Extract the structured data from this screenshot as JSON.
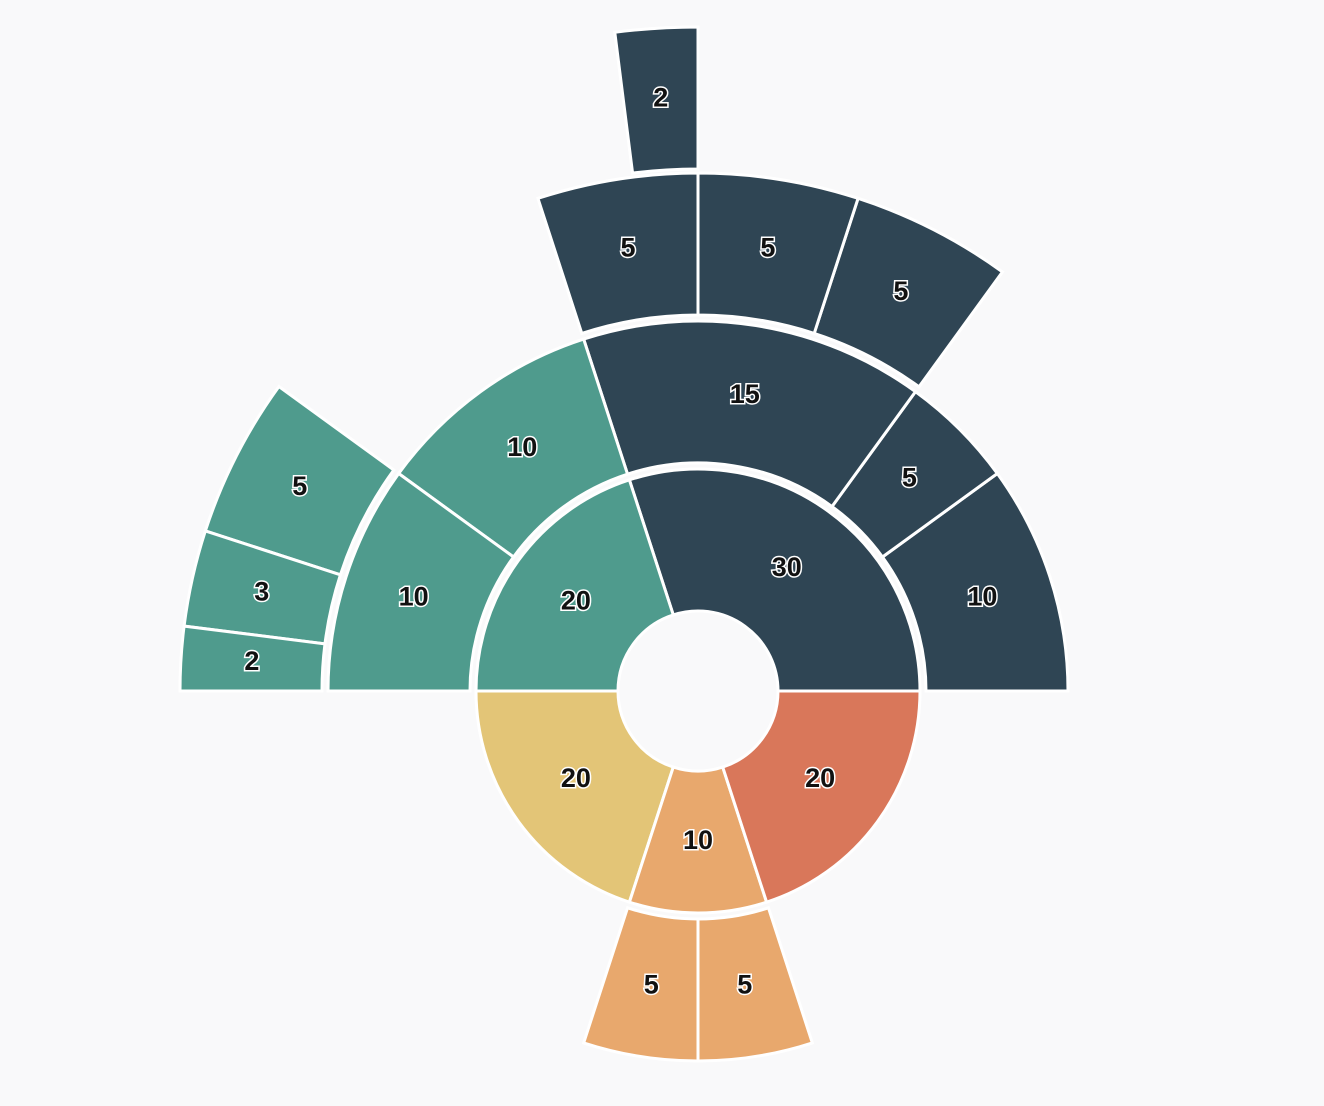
{
  "chart_data": {
    "type": "sunburst",
    "data": [
      {
        "value": 30,
        "color": "#2f4554",
        "children": [
          {
            "value": 10
          },
          {
            "value": 5
          },
          {
            "value": 15,
            "children": [
              {
                "value": 5
              },
              {
                "value": 5
              },
              {
                "value": 5,
                "children": [
                  {
                    "value": 2
                  }
                ]
              }
            ]
          }
        ]
      },
      {
        "value": 20,
        "color": "#4f9b8d",
        "children": [
          {
            "value": 10
          },
          {
            "value": 10,
            "children": [
              {
                "value": 5
              },
              {
                "value": 3
              },
              {
                "value": 2
              }
            ]
          }
        ]
      },
      {
        "value": 20,
        "color": "#e3c577"
      },
      {
        "value": 10,
        "color": "#e8a86d",
        "children": [
          {
            "value": 5
          },
          {
            "value": 5
          }
        ]
      },
      {
        "value": 20,
        "color": "#d9775a"
      }
    ]
  }
}
